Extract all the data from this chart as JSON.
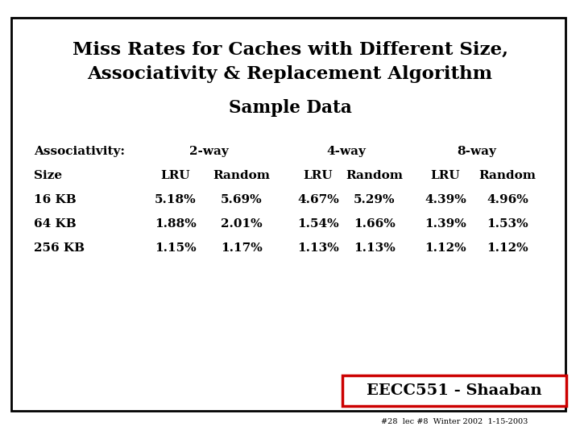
{
  "title_line1": "Miss Rates for Caches with Different Size,",
  "title_line2": "Associativity & Replacement Algorithm",
  "subtitle": "Sample Data",
  "bg_color": "#ffffff",
  "border_color": "#000000",
  "text_color": "#000000",
  "assoc_label": "Associativity:",
  "col_headers": [
    "2-way",
    "4-way",
    "8-way"
  ],
  "sub_headers": [
    "LRU",
    "Random",
    "LRU",
    "Random",
    "LRU",
    "Random"
  ],
  "size_label": "Size",
  "sizes": [
    "16 KB",
    "64 KB",
    "256 KB"
  ],
  "data": [
    [
      "5.18%",
      "5.69%",
      "4.67%",
      "5.29%",
      "4.39%",
      "4.96%"
    ],
    [
      "1.88%",
      "2.01%",
      "1.54%",
      "1.66%",
      "1.39%",
      "1.53%"
    ],
    [
      "1.15%",
      "1.17%",
      "1.13%",
      "1.13%",
      "1.12%",
      "1.12%"
    ]
  ],
  "footer_main": "EECC551 - Shaaban",
  "footer_sub": "#28  lec #8  Winter 2002  1-15-2003",
  "footer_box_color": "#cc0000"
}
